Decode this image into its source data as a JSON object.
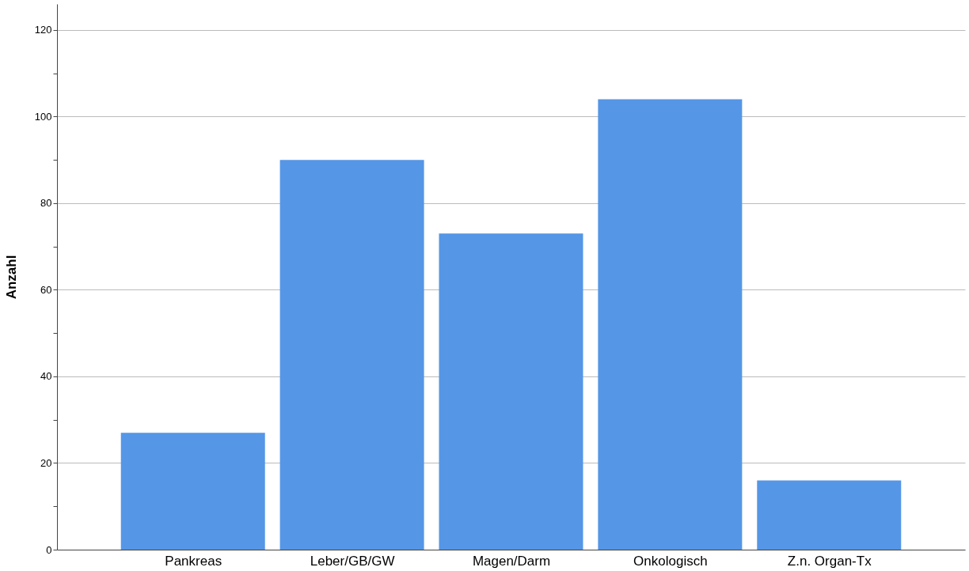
{
  "chart_data": {
    "type": "bar",
    "ylabel": "Anzahl",
    "categories": [
      "Pankreas",
      "Leber/GB/GW",
      "Magen/Darm",
      "Onkologisch",
      "Z.n. Organ-Tx"
    ],
    "values": [
      27,
      90,
      73,
      104,
      16
    ],
    "color": "#5596e6",
    "ylim": [
      0,
      126
    ],
    "yticks": [
      0,
      {
        "value": 10,
        "label": null
      },
      20,
      {
        "value": 30,
        "label": null
      },
      40,
      {
        "value": 50,
        "label": null
      },
      60,
      {
        "value": 70,
        "label": null
      },
      80,
      {
        "value": 90,
        "label": null
      },
      100,
      {
        "value": 110,
        "label": null
      },
      120
    ],
    "grid": "y"
  }
}
